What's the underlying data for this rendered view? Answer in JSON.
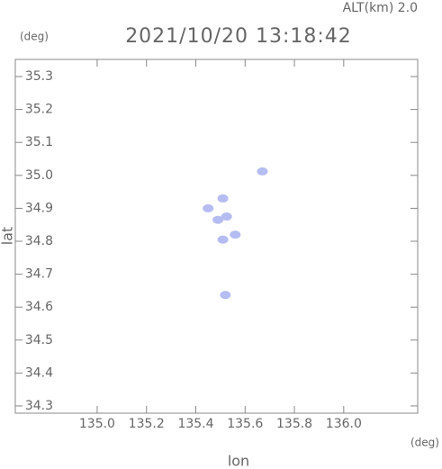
{
  "chart_data": {
    "type": "scatter",
    "title": "2021/10/20 13:18:42",
    "annotation": "ALT(km) 2.0",
    "x_unit": "(deg)",
    "y_unit": "(deg)",
    "x_label": "lon",
    "y_label": "lat",
    "x": [
      135.45,
      135.51,
      135.49,
      135.525,
      135.67,
      135.51,
      135.56,
      135.52
    ],
    "values": [
      34.9,
      34.93,
      34.865,
      34.875,
      35.012,
      34.805,
      34.82,
      34.637
    ],
    "color": "#b4bcf2",
    "xlim": [
      134.668,
      136.3
    ],
    "ylim": [
      34.278,
      35.352
    ],
    "xticks": [
      {
        "value": 135.0,
        "label": "135.0"
      },
      135.2,
      135.4,
      135.6,
      135.8,
      {
        "value": 136.0,
        "label": "136.0"
      }
    ],
    "yticks": [
      34.3,
      34.4,
      34.5,
      34.6,
      34.7,
      34.8,
      34.9,
      {
        "value": 35.0,
        "label": "35.0"
      },
      35.1,
      35.2,
      35.3
    ]
  }
}
